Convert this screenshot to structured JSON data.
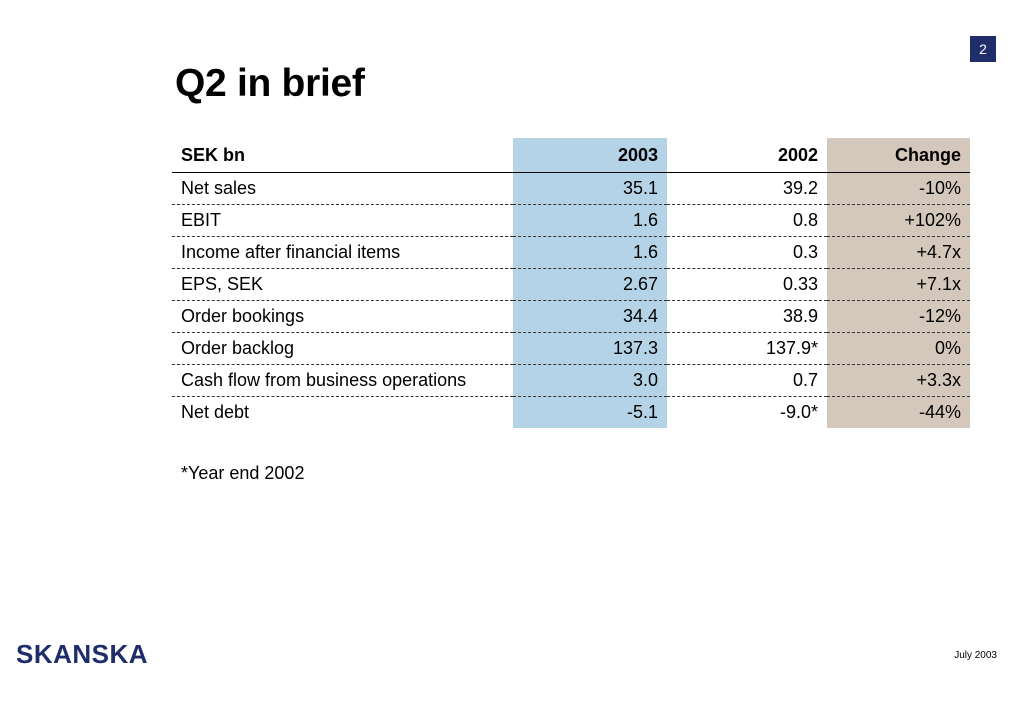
{
  "page_number": "2",
  "title": "Q2 in brief",
  "table": {
    "headers": {
      "label": "SEK bn",
      "y2003": "2003",
      "y2002": "2002",
      "change": "Change"
    },
    "rows": [
      {
        "label": "Net sales",
        "y2003": "35.1",
        "y2002": "39.2",
        "change": "-10%"
      },
      {
        "label": "EBIT",
        "y2003": "1.6",
        "y2002": "0.8",
        "change": "+102%"
      },
      {
        "label": "Income after financial items",
        "y2003": "1.6",
        "y2002": "0.3",
        "change": "+4.7x"
      },
      {
        "label": "EPS, SEK",
        "y2003": "2.67",
        "y2002": "0.33",
        "change": "+7.1x"
      },
      {
        "label": "Order bookings",
        "y2003": "34.4",
        "y2002": "38.9",
        "change": "-12%"
      },
      {
        "label": "Order backlog",
        "y2003": "137.3",
        "y2002": "137.9*",
        "change": "0%"
      },
      {
        "label": "Cash flow from business operations",
        "y2003": "3.0",
        "y2002": "0.7",
        "change": "+3.3x"
      },
      {
        "label": "Net debt",
        "y2003": "-5.1",
        "y2002": "-9.0*",
        "change": "-44%"
      }
    ]
  },
  "footnote": "*Year end 2002",
  "logo_text": "SKANSKA",
  "date": "July 2003",
  "colors": {
    "brand_navy": "#1f2d6b",
    "col_2003_bg": "#b4d3e6",
    "col_change_bg": "#d4c8bc"
  }
}
